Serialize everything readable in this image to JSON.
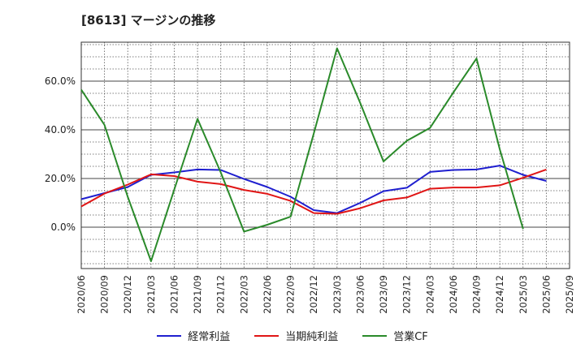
{
  "title": "[8613]  マージンの推移",
  "chart_data": {
    "type": "line",
    "x": [
      "2020/06",
      "2020/09",
      "2020/12",
      "2021/03",
      "2021/06",
      "2021/09",
      "2021/12",
      "2022/03",
      "2022/06",
      "2022/09",
      "2022/12",
      "2023/03",
      "2023/06",
      "2023/09",
      "2023/12",
      "2024/03",
      "2024/06",
      "2024/09",
      "2024/12",
      "2025/03",
      "2025/06",
      "2025/09"
    ],
    "y_ticks": [
      0,
      20,
      40,
      60
    ],
    "y_tick_labels": [
      "0.0%",
      "20.0%",
      "40.0%",
      "60.0%"
    ],
    "ylim": [
      -17,
      76
    ],
    "grid": true,
    "legend_position": "bottom",
    "series": [
      {
        "name": "経常利益",
        "color": "#1f1fcf",
        "values": [
          11.5,
          14,
          16.5,
          21.5,
          22.5,
          23.7,
          23.5,
          19.8,
          16.5,
          12.5,
          7,
          5.8,
          10,
          14.8,
          16.2,
          22.7,
          23.5,
          23.7,
          25.3,
          21.5,
          19,
          null
        ]
      },
      {
        "name": "当期純利益",
        "color": "#e01515",
        "values": [
          8.5,
          13.8,
          17.5,
          21.7,
          21,
          18.7,
          17.7,
          15.3,
          13.7,
          10.8,
          5.8,
          5.5,
          7.8,
          11,
          12.2,
          15.8,
          16.3,
          16.3,
          17.2,
          20.3,
          23.7,
          null
        ]
      },
      {
        "name": "営業CF",
        "color": "#2a8a2a",
        "values": [
          56.5,
          42,
          12.5,
          -14,
          15.5,
          44.5,
          22.5,
          -1.8,
          1,
          4.3,
          38.5,
          73.5,
          51,
          27,
          35.5,
          40.8,
          55.3,
          69.3,
          32,
          -0.7,
          null,
          null
        ]
      }
    ]
  }
}
